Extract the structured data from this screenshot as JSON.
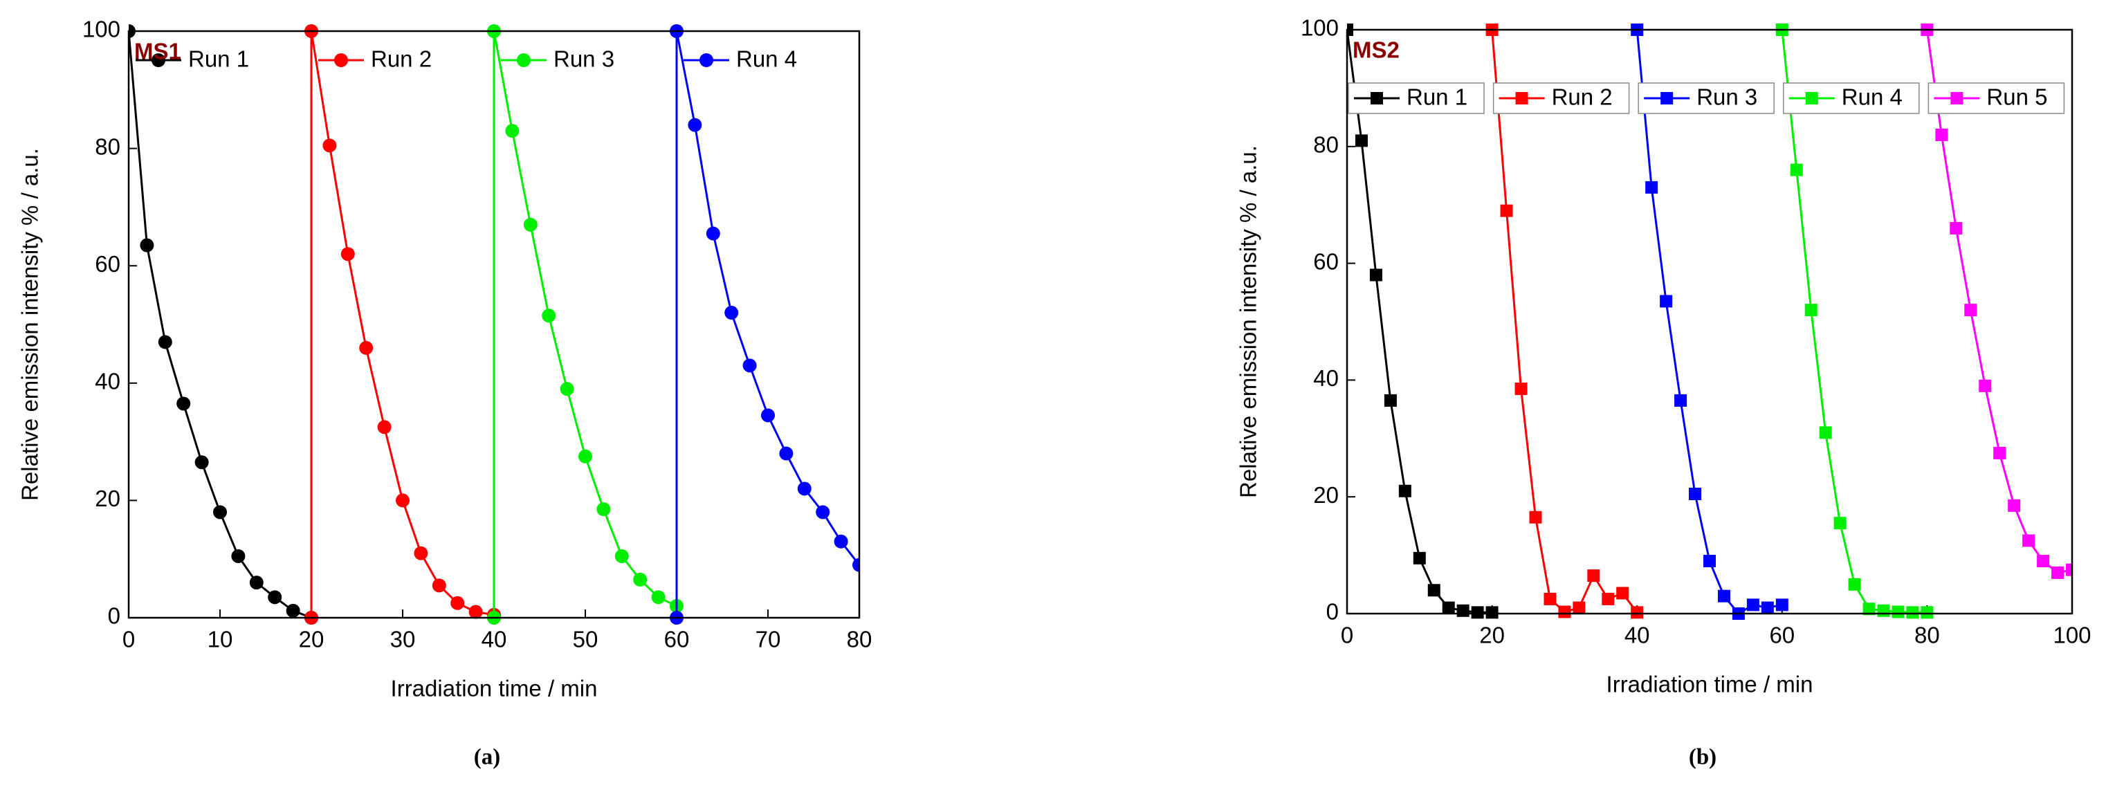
{
  "chart_data": [
    {
      "type": "line",
      "label": "(a)",
      "annotation": "MS1",
      "xlabel": "Irradiation time / min",
      "ylabel": "Relative emission intensity % / a.u.",
      "xlim": [
        0,
        80
      ],
      "xticks": [
        0,
        10,
        20,
        30,
        40,
        50,
        60,
        70,
        80
      ],
      "ylim": [
        0,
        100
      ],
      "yticks": [
        0,
        20,
        40,
        60,
        80,
        100
      ],
      "marker": "circle",
      "series": [
        {
          "name": "Run 1",
          "color": "#000000",
          "x": [
            0,
            2,
            4,
            6,
            8,
            10,
            12,
            14,
            16,
            18,
            20
          ],
          "values": [
            100,
            63.5,
            47,
            36.5,
            26.5,
            18,
            10.5,
            6,
            3.5,
            1.2,
            0
          ]
        },
        {
          "name": "Run 2",
          "color": "#ff0000",
          "x": [
            20,
            20,
            22,
            24,
            26,
            28,
            30,
            32,
            34,
            36,
            38,
            40
          ],
          "values": [
            0,
            100,
            80.5,
            62,
            46,
            32.5,
            20,
            11,
            5.5,
            2.5,
            1,
            0.5
          ]
        },
        {
          "name": "Run 3",
          "color": "#00ee00",
          "x": [
            40,
            40,
            42,
            44,
            46,
            48,
            50,
            52,
            54,
            56,
            58,
            60
          ],
          "values": [
            0,
            100,
            83,
            67,
            51.5,
            39,
            27.5,
            18.5,
            10.5,
            6.5,
            3.5,
            2
          ]
        },
        {
          "name": "Run 4",
          "color": "#0000ff",
          "x": [
            60,
            60,
            62,
            64,
            66,
            68,
            70,
            72,
            74,
            76,
            78,
            80
          ],
          "values": [
            0,
            100,
            84,
            65.5,
            52,
            43,
            34.5,
            28,
            22,
            18,
            13,
            9
          ]
        }
      ]
    },
    {
      "type": "line",
      "label": "(b)",
      "annotation": "MS2",
      "xlabel": "Irradiation time / min",
      "ylabel": "Relative emission intensity % / a.u.",
      "xlim": [
        0,
        100
      ],
      "xticks": [
        0,
        20,
        40,
        60,
        80,
        100
      ],
      "ylim": [
        0,
        100
      ],
      "yticks": [
        0,
        20,
        40,
        60,
        80,
        100
      ],
      "marker": "square",
      "series": [
        {
          "name": "Run 1",
          "color": "#000000",
          "x": [
            0,
            2,
            4,
            6,
            8,
            10,
            12,
            14,
            16,
            18,
            20
          ],
          "values": [
            100,
            81,
            58,
            36.5,
            21,
            9.5,
            4,
            1,
            0.5,
            0.2,
            0.2
          ]
        },
        {
          "name": "Run 2",
          "color": "#ff0000",
          "x": [
            20,
            22,
            24,
            26,
            28,
            30,
            32,
            34,
            36,
            38,
            40
          ],
          "values": [
            100,
            69,
            38.5,
            16.5,
            2.5,
            0.3,
            1,
            6.5,
            2.5,
            3.5,
            0.2
          ]
        },
        {
          "name": "Run 3",
          "color": "#0000ff",
          "x": [
            40,
            42,
            44,
            46,
            48,
            50,
            52,
            54,
            56,
            58,
            60
          ],
          "values": [
            100,
            73,
            53.5,
            36.5,
            20.5,
            9,
            3,
            0,
            1.5,
            1,
            1.5
          ]
        },
        {
          "name": "Run 4",
          "color": "#00ee00",
          "x": [
            60,
            62,
            64,
            66,
            68,
            70,
            72,
            74,
            76,
            78,
            80
          ],
          "values": [
            100,
            76,
            52,
            31,
            15.5,
            5,
            0.8,
            0.5,
            0.3,
            0.2,
            0.2
          ]
        },
        {
          "name": "Run 5",
          "color": "#ff00ff",
          "x": [
            80,
            82,
            84,
            86,
            88,
            90,
            92,
            94,
            96,
            98,
            100
          ],
          "values": [
            100,
            82,
            66,
            52,
            39,
            27.5,
            18.5,
            12.5,
            9,
            7,
            7.5
          ]
        }
      ]
    }
  ]
}
